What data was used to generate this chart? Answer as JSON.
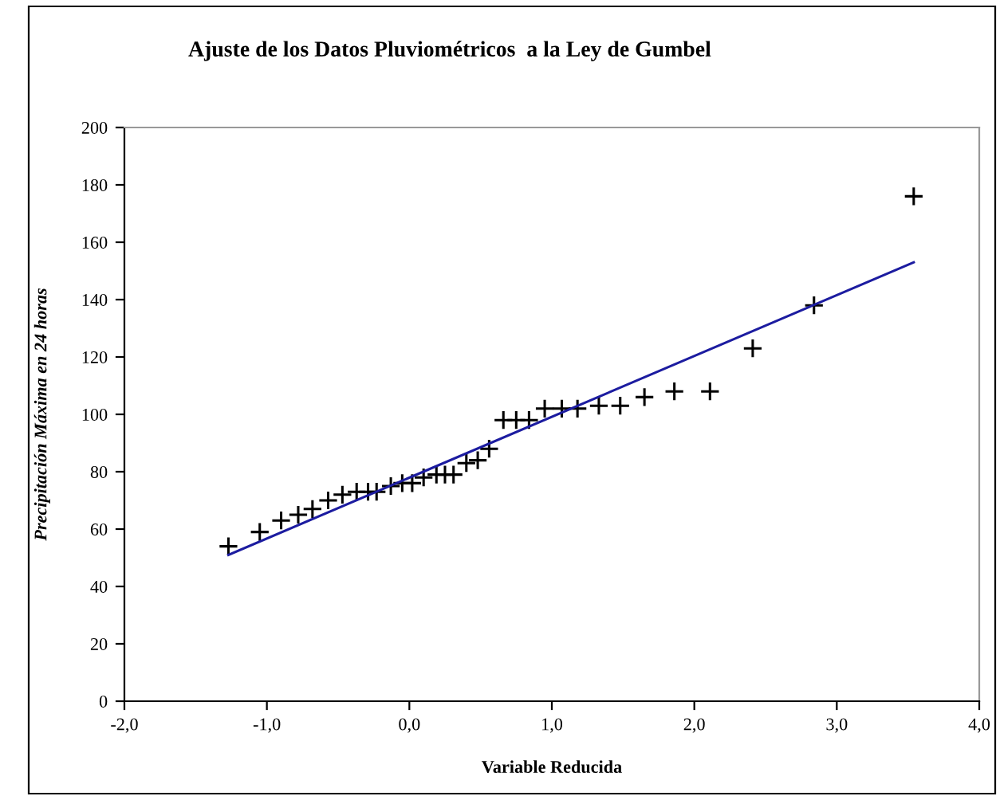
{
  "chart_data": {
    "type": "scatter",
    "title": "Ajuste de los Datos Pluviométricos  a la Ley de Gumbel",
    "xlabel": "Variable Reducida",
    "ylabel": "Precipitación Máxima en 24 horas",
    "xlim": [
      -2,
      4
    ],
    "xticks": [
      {
        "value": -2,
        "label": "-2,0"
      },
      {
        "value": -1,
        "label": "-1,0"
      },
      {
        "value": 0,
        "label": "0,0"
      },
      {
        "value": 1,
        "label": "1,0"
      },
      {
        "value": 2,
        "label": "2,0"
      },
      {
        "value": 3,
        "label": "3,0"
      },
      {
        "value": 4,
        "label": "4,0"
      }
    ],
    "ylim": [
      0,
      200
    ],
    "yticks": [
      0,
      20,
      40,
      60,
      80,
      100,
      120,
      140,
      160,
      180,
      200
    ],
    "grid": false,
    "legend": false,
    "series": [
      {
        "marker": "cross",
        "color": "#000000",
        "x": [
          -1.27,
          -1.05,
          -0.9,
          -0.78,
          -0.68,
          -0.57,
          -0.47,
          -0.37,
          -0.29,
          -0.23,
          -0.13,
          -0.05,
          0.02,
          0.1,
          0.19,
          0.25,
          0.31,
          0.4,
          0.48,
          0.56,
          0.66,
          0.75,
          0.84,
          0.95,
          1.07,
          1.18,
          1.33,
          1.48,
          1.65,
          1.86,
          2.11,
          2.41,
          2.84,
          3.54
        ],
        "values": [
          54,
          59,
          63,
          65,
          67,
          70,
          72,
          73,
          73,
          73,
          75,
          76,
          76,
          78,
          79,
          79,
          79,
          83,
          84,
          88,
          98,
          98,
          98,
          102,
          102,
          102,
          103,
          103,
          106,
          108,
          108,
          123,
          138,
          176
        ]
      },
      {
        "type": "line",
        "line_style": "solid",
        "marker": "none",
        "color": "#1c1ca0",
        "x": [
          -1.27,
          3.54
        ],
        "values": [
          51,
          153
        ]
      }
    ]
  }
}
